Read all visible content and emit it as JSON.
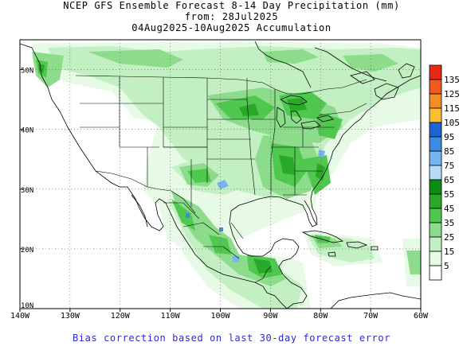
{
  "title": {
    "line1": "NCEP GFS Ensemble Forecast 8-14 Day Precipitation (mm)",
    "line2": "from: 28Jul2025",
    "line3": "04Aug2025-10Aug2025 Accumulation"
  },
  "map": {
    "lon_range": [
      -140,
      -60
    ],
    "lat_range": [
      10,
      55
    ],
    "lon_ticks": [
      {
        "lon": -140,
        "label": "140W"
      },
      {
        "lon": -130,
        "label": "130W"
      },
      {
        "lon": -120,
        "label": "120W"
      },
      {
        "lon": -110,
        "label": "110W"
      },
      {
        "lon": -100,
        "label": "100W"
      },
      {
        "lon": -90,
        "label": "90W"
      },
      {
        "lon": -80,
        "label": "80W"
      },
      {
        "lon": -70,
        "label": "70W"
      },
      {
        "lon": -60,
        "label": "60W"
      }
    ],
    "lat_ticks": [
      {
        "lat": 10,
        "label": "10N"
      },
      {
        "lat": 20,
        "label": "20N"
      },
      {
        "lat": 30,
        "label": "30N"
      },
      {
        "lat": 40,
        "label": "40N"
      },
      {
        "lat": 50,
        "label": "50N"
      }
    ],
    "grid": true
  },
  "legend": {
    "levels": [
      {
        "label": "135",
        "color": "#e62814"
      },
      {
        "label": "125",
        "color": "#f05a1e"
      },
      {
        "label": "115",
        "color": "#f58c28"
      },
      {
        "label": "105",
        "color": "#fabe32"
      },
      {
        "label": "95",
        "color": "#1e64d2"
      },
      {
        "label": "85",
        "color": "#3c8ce6"
      },
      {
        "label": "75",
        "color": "#78b4f0"
      },
      {
        "label": "65",
        "color": "#b4dcfa"
      },
      {
        "label": "55",
        "color": "#0a8c14"
      },
      {
        "label": "45",
        "color": "#28aa28"
      },
      {
        "label": "35",
        "color": "#50c850"
      },
      {
        "label": "25",
        "color": "#8cdc8c"
      },
      {
        "label": "15",
        "color": "#c3f0c3"
      },
      {
        "label": "5",
        "color": "#e6fae6"
      },
      {
        "label": "",
        "color": "#ffffff"
      }
    ]
  },
  "footer": "Bias correction based on last 30-day forecast error"
}
